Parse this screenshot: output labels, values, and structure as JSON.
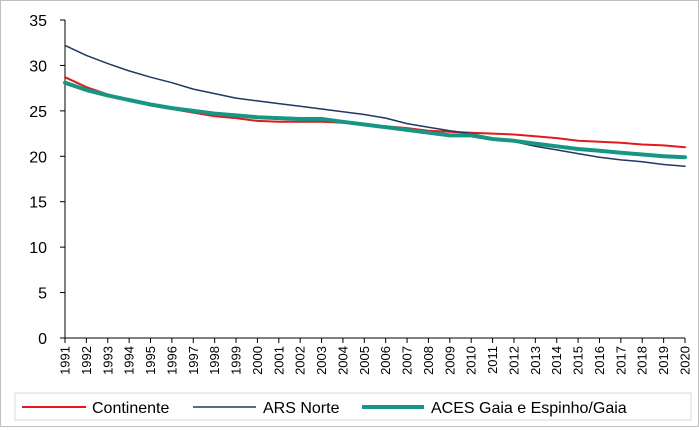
{
  "chart_data": {
    "type": "line",
    "title": "",
    "xlabel": "",
    "ylabel": "",
    "ylim": [
      0,
      35
    ],
    "yticks": [
      0,
      5,
      10,
      15,
      20,
      25,
      30,
      35
    ],
    "grid": false,
    "legend_position": "bottom",
    "x": [
      "1991",
      "1992",
      "1993",
      "1994",
      "1995",
      "1996",
      "1997",
      "1998",
      "1999",
      "2000",
      "2001",
      "2002",
      "2003",
      "2004",
      "2005",
      "2006",
      "2007",
      "2008",
      "2009",
      "2010",
      "2011",
      "2012",
      "2013",
      "2014",
      "2015",
      "2016",
      "2017",
      "2018",
      "2019",
      "2020"
    ],
    "series": [
      {
        "name": "Continente",
        "color": "#e31a1c",
        "values": [
          28.7,
          27.6,
          26.8,
          26.2,
          25.6,
          25.2,
          24.8,
          24.4,
          24.2,
          23.9,
          23.8,
          23.8,
          23.8,
          23.7,
          23.5,
          23.3,
          23.1,
          22.8,
          22.7,
          22.6,
          22.5,
          22.4,
          22.2,
          22.0,
          21.7,
          21.6,
          21.5,
          21.3,
          21.2,
          21.0
        ],
        "stroke_width": 2
      },
      {
        "name": "ARS Norte",
        "color": "#1f3864",
        "values": [
          32.2,
          31.1,
          30.2,
          29.4,
          28.7,
          28.1,
          27.4,
          26.9,
          26.4,
          26.1,
          25.8,
          25.5,
          25.2,
          24.9,
          24.6,
          24.2,
          23.6,
          23.2,
          22.8,
          22.5,
          22.0,
          21.6,
          21.1,
          20.7,
          20.3,
          19.9,
          19.6,
          19.4,
          19.1,
          18.9
        ],
        "stroke_width": 1.5
      },
      {
        "name": "ACES Gaia e Espinho/Gaia",
        "color": "#169683",
        "values": [
          28.1,
          27.3,
          26.7,
          26.2,
          25.7,
          25.3,
          25.0,
          24.7,
          24.5,
          24.3,
          24.2,
          24.1,
          24.1,
          23.8,
          23.5,
          23.2,
          22.9,
          22.6,
          22.3,
          22.3,
          21.9,
          21.7,
          21.4,
          21.1,
          20.8,
          20.6,
          20.4,
          20.2,
          20.0,
          19.9
        ],
        "stroke_width": 4
      }
    ]
  }
}
